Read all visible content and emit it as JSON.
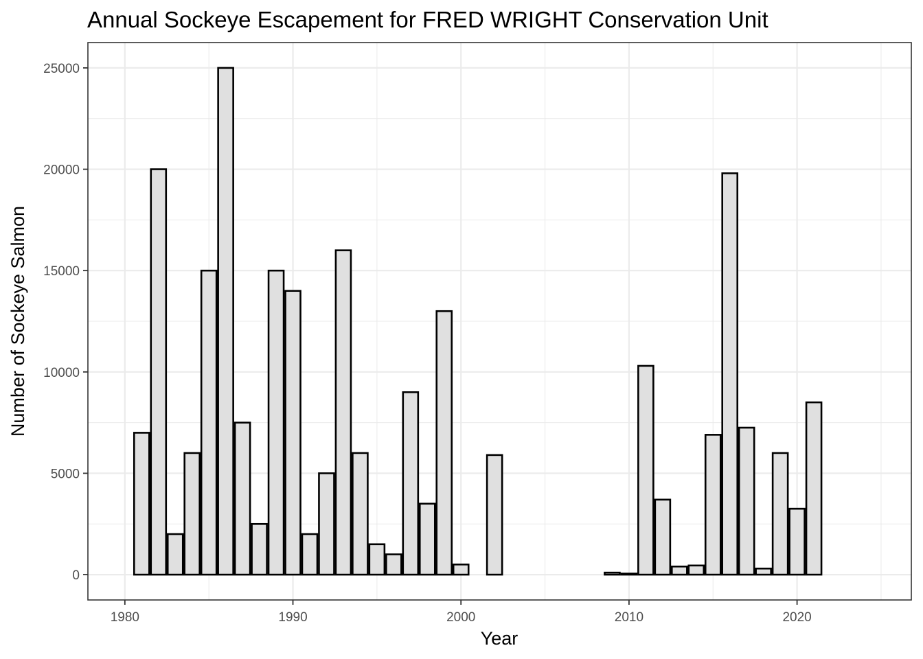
{
  "chart_data": {
    "type": "bar",
    "title": "Annual Sockeye Escapement for FRED WRIGHT Conservation Unit",
    "xlabel": "Year",
    "ylabel": "Number of Sockeye Salmon",
    "xlim": [
      1977.8,
      2026.8
    ],
    "ylim": [
      -1250,
      26250
    ],
    "x_major_ticks": [
      1980,
      1990,
      2000,
      2010,
      2020
    ],
    "x_minor_ticks": [
      1985,
      1995,
      2005,
      2015,
      2025
    ],
    "y_major_ticks": [
      0,
      5000,
      10000,
      15000,
      20000,
      25000
    ],
    "y_minor_ticks": [
      2500,
      7500,
      12500,
      17500,
      22500
    ],
    "x_tick_labels": [
      "1980",
      "1990",
      "2000",
      "2010",
      "2020"
    ],
    "y_tick_labels": [
      "0",
      "5000",
      "10000",
      "15000",
      "20000",
      "25000"
    ],
    "grid": true,
    "bar_fill": "#e0e0e0",
    "bar_outline": "#000000",
    "x": [
      1981,
      1982,
      1983,
      1984,
      1985,
      1986,
      1987,
      1988,
      1989,
      1990,
      1991,
      1992,
      1993,
      1994,
      1995,
      1996,
      1997,
      1998,
      1999,
      2000,
      2002,
      2009,
      2010,
      2011,
      2012,
      2013,
      2014,
      2015,
      2016,
      2017,
      2018,
      2019,
      2020,
      2021
    ],
    "values": [
      7000,
      20000,
      2000,
      6000,
      15000,
      25000,
      7500,
      2500,
      15000,
      14000,
      2000,
      5000,
      16000,
      6000,
      1500,
      1000,
      9000,
      3500,
      13000,
      500,
      5900,
      100,
      50,
      10300,
      3700,
      400,
      450,
      6900,
      19800,
      7250,
      300,
      6000,
      3250,
      8500
    ]
  }
}
